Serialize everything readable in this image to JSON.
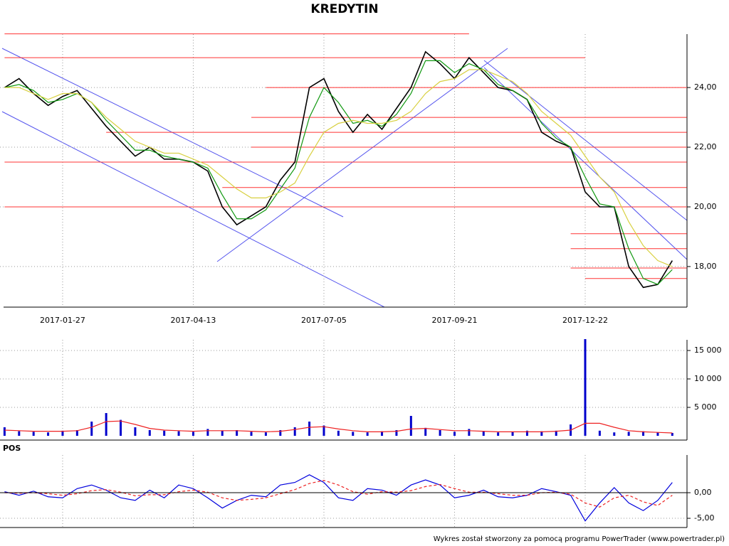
{
  "chart_data": [
    {
      "type": "line",
      "title": "KREDYTIN",
      "categories": [
        null,
        null,
        null,
        null,
        "2017-01-27",
        null,
        null,
        null,
        null,
        null,
        null,
        null,
        null,
        "2017-04-13",
        null,
        null,
        null,
        null,
        null,
        null,
        null,
        null,
        "2017-07-05",
        null,
        null,
        null,
        null,
        null,
        null,
        null,
        null,
        "2017-09-21",
        null,
        null,
        null,
        null,
        null,
        null,
        null,
        null,
        "2017-12-22",
        null,
        null,
        null,
        null,
        null,
        null
      ],
      "ylim": [
        16.64,
        25.79
      ],
      "yticks": [
        {
          "value": 18,
          "label": "18,00"
        },
        {
          "value": 20,
          "label": "20,00"
        },
        {
          "value": 22,
          "label": "22,00"
        },
        {
          "value": 24,
          "label": "24,00"
        }
      ],
      "grid": true,
      "series": [
        {
          "color": "#000000",
          "values": [
            24.0,
            24.3,
            23.8,
            23.4,
            23.7,
            23.9,
            23.3,
            22.7,
            22.2,
            21.7,
            22.0,
            21.6,
            21.6,
            21.5,
            21.2,
            20.0,
            19.4,
            19.7,
            20.0,
            20.9,
            21.5,
            24.0,
            24.3,
            23.2,
            22.5,
            23.1,
            22.6,
            23.3,
            24.0,
            25.2,
            24.8,
            24.3,
            25.0,
            24.5,
            24.0,
            23.9,
            23.6,
            22.5,
            22.2,
            22.0,
            20.5,
            20.0,
            20.0,
            18.0,
            17.3,
            17.4,
            18.2
          ]
        },
        {
          "color": "#119911",
          "values": [
            24.0,
            24.1,
            23.9,
            23.5,
            23.6,
            23.8,
            23.5,
            22.9,
            22.4,
            21.9,
            21.9,
            21.7,
            21.6,
            21.5,
            21.3,
            20.4,
            19.6,
            19.6,
            19.9,
            20.6,
            21.3,
            23.0,
            24.0,
            23.5,
            22.8,
            22.9,
            22.7,
            23.1,
            23.8,
            24.9,
            24.9,
            24.5,
            24.8,
            24.6,
            24.1,
            23.9,
            23.6,
            22.8,
            22.3,
            22.0,
            21.0,
            20.1,
            20.0,
            18.6,
            17.6,
            17.4,
            17.9
          ]
        },
        {
          "color": "#d8d040",
          "values": [
            24.0,
            24.0,
            23.8,
            23.6,
            23.8,
            23.8,
            23.5,
            23.0,
            22.6,
            22.2,
            22.0,
            21.8,
            21.8,
            21.6,
            21.4,
            21.0,
            20.6,
            20.3,
            20.3,
            20.5,
            20.8,
            21.7,
            22.5,
            22.8,
            22.9,
            22.8,
            22.8,
            22.9,
            23.2,
            23.8,
            24.2,
            24.3,
            24.6,
            24.6,
            24.4,
            24.2,
            23.8,
            23.2,
            22.8,
            22.4,
            21.7,
            21.0,
            20.5,
            19.5,
            18.7,
            18.2,
            18.0
          ]
        }
      ],
      "level_color": "#ff3333",
      "levels": [
        {
          "value": 25.8,
          "from": 0,
          "to": 32
        },
        {
          "value": 25.0,
          "from": 0,
          "to": 40
        },
        {
          "value": 24.0,
          "from": 18,
          "to": 47
        },
        {
          "value": 23.0,
          "from": 17,
          "to": 47
        },
        {
          "value": 22.5,
          "from": 7,
          "to": 47
        },
        {
          "value": 22.0,
          "from": 17,
          "to": 47
        },
        {
          "value": 21.5,
          "from": 0,
          "to": 47
        },
        {
          "value": 20.65,
          "from": 15,
          "to": 47
        },
        {
          "value": 20.0,
          "from": 0,
          "to": 47
        },
        {
          "value": 19.1,
          "from": 39,
          "to": 47
        },
        {
          "value": 18.6,
          "from": 39,
          "to": 47
        },
        {
          "value": 17.95,
          "from": 39,
          "to": 47
        },
        {
          "value": 17.6,
          "from": 40,
          "to": 47
        }
      ]
    },
    {
      "type": "bar",
      "ylim": [
        -750,
        16875
      ],
      "yticks": [
        {
          "value": 5000,
          "label": "5 000"
        },
        {
          "value": 10000,
          "label": "10 000"
        },
        {
          "value": 15000,
          "label": "15 000"
        }
      ],
      "grid": true,
      "series": [
        {
          "color": "#0000cc",
          "values": [
            1500,
            800,
            700,
            600,
            900,
            1000,
            2500,
            4000,
            2800,
            1500,
            1000,
            900,
            800,
            700,
            1200,
            900,
            1000,
            700,
            600,
            1000,
            1500,
            2500,
            1800,
            900,
            700,
            600,
            800,
            1000,
            3500,
            1400,
            1000,
            700,
            1200,
            800,
            600,
            700,
            900,
            800,
            900,
            2000,
            17000,
            900,
            600,
            700,
            800,
            600,
            500
          ]
        },
        {
          "color": "#ee2222",
          "style": "line",
          "values": [
            1000,
            900,
            800,
            800,
            800,
            900,
            1500,
            2500,
            2600,
            2000,
            1300,
            1000,
            900,
            800,
            900,
            900,
            900,
            800,
            700,
            800,
            1100,
            1500,
            1600,
            1200,
            900,
            700,
            700,
            800,
            1200,
            1300,
            1100,
            900,
            900,
            800,
            700,
            700,
            700,
            700,
            800,
            1000,
            2200,
            2200,
            1500,
            900,
            700,
            600,
            500
          ]
        }
      ]
    },
    {
      "type": "line",
      "title": "POS",
      "ylim": [
        -6.8,
        7.36
      ],
      "yticks": [
        {
          "value": -5,
          "label": "-5,00"
        },
        {
          "value": 0,
          "label": "0,00"
        }
      ],
      "grid": true,
      "series": [
        {
          "color": "#0000dd",
          "values": [
            0.2,
            -0.5,
            0.3,
            -0.8,
            -1.0,
            0.8,
            1.5,
            0.5,
            -1.0,
            -1.5,
            0.5,
            -1.0,
            1.5,
            0.8,
            -1.0,
            -3.0,
            -1.5,
            -0.5,
            -0.8,
            1.5,
            2.0,
            3.5,
            2.0,
            -1.0,
            -1.5,
            0.8,
            0.5,
            -0.5,
            1.5,
            2.5,
            1.5,
            -1.0,
            -0.5,
            0.5,
            -0.8,
            -1.0,
            -0.5,
            0.8,
            0.2,
            -0.5,
            -5.5,
            -2.0,
            1.0,
            -2.0,
            -3.5,
            -1.5,
            2.0
          ]
        },
        {
          "color": "#ee2222",
          "dash": true,
          "values": [
            0,
            -0.1,
            0,
            -0.2,
            -0.5,
            -0.2,
            0.4,
            0.6,
            0.1,
            -0.6,
            -0.4,
            -0.4,
            0.2,
            0.5,
            0.1,
            -1.0,
            -1.5,
            -1.3,
            -1.0,
            -0.2,
            0.6,
            1.8,
            2.4,
            1.5,
            0.2,
            -0.3,
            0.2,
            0.1,
            0.4,
            1.2,
            1.6,
            0.8,
            0.1,
            0.1,
            -0.2,
            -0.5,
            -0.5,
            0,
            0.1,
            -0.3,
            -2.0,
            -2.8,
            -1.0,
            -0.5,
            -1.8,
            -2.5,
            -0.5
          ]
        }
      ]
    }
  ],
  "footer": "Wykres został stworzony za pomocą programu PowerTrader (www.powertrader.pl)"
}
